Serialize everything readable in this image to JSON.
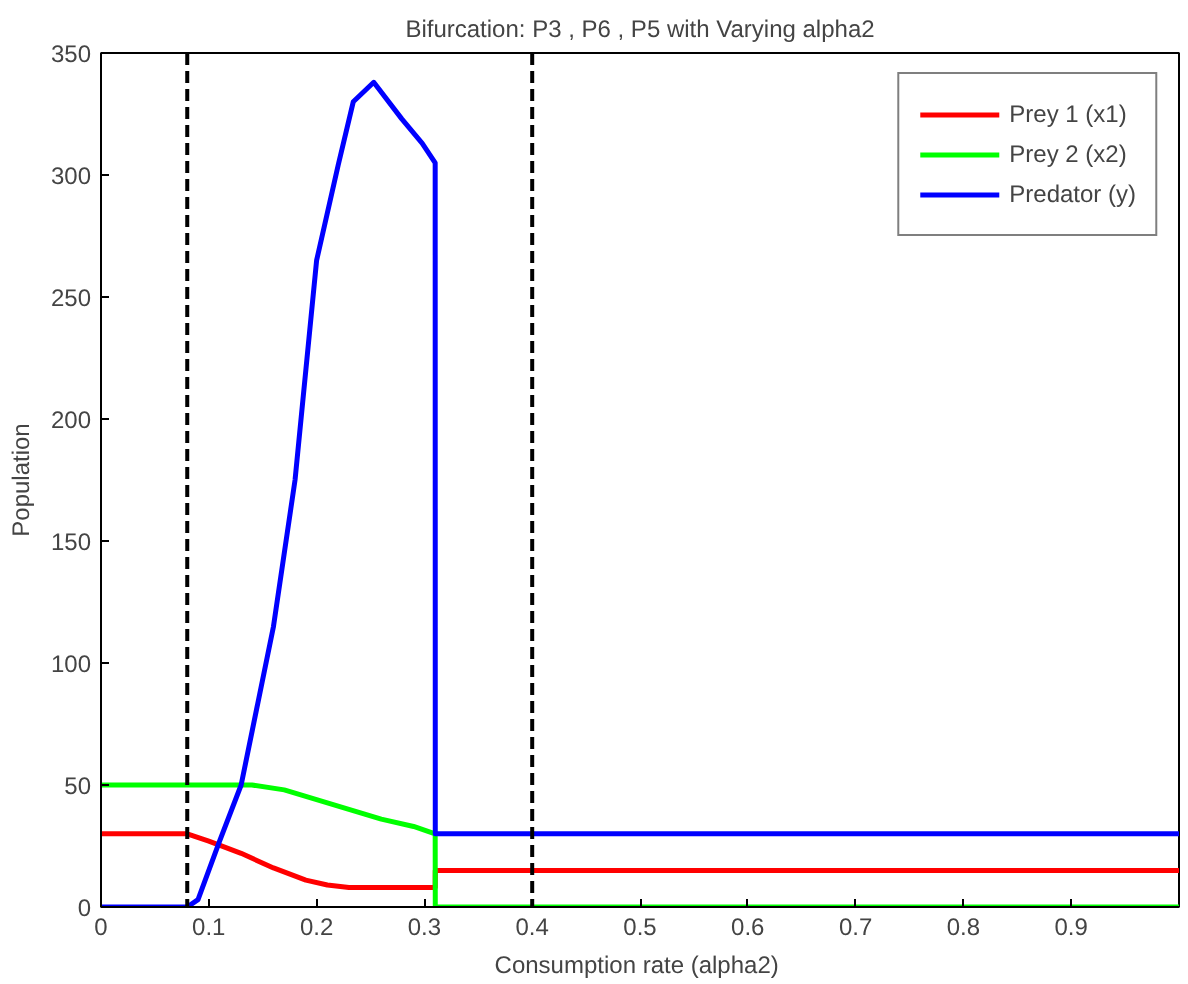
{
  "chart_data": {
    "type": "line",
    "title": "Bifurcation: P3 , P6 , P5 with Varying alpha2",
    "xlabel": "Consumption  rate (alpha2)",
    "ylabel": "Population",
    "xlim": [
      0,
      1
    ],
    "ylim": [
      0,
      350
    ],
    "xticks": [
      0,
      0.1,
      0.2,
      0.3,
      0.4,
      0.5,
      0.6,
      0.7,
      0.8,
      0.9
    ],
    "yticks": [
      0,
      50,
      100,
      150,
      200,
      250,
      300,
      350
    ],
    "grid": false,
    "legend": "top right",
    "series": [
      {
        "name": "Prey 1 (x1)",
        "color": "#ff0000",
        "x": [
          0,
          0.08,
          0.1,
          0.13,
          0.16,
          0.19,
          0.21,
          0.23,
          0.31,
          0.3101,
          1
        ],
        "values": [
          30,
          30,
          27,
          22,
          16,
          11,
          9,
          8,
          8,
          15,
          15
        ]
      },
      {
        "name": "Prey 2 (x2)",
        "color": "#00ff00",
        "x": [
          0,
          0.14,
          0.17,
          0.2,
          0.23,
          0.26,
          0.29,
          0.31,
          0.3101,
          1
        ],
        "values": [
          50,
          50,
          48,
          44,
          40,
          36,
          33,
          30,
          0,
          0
        ]
      },
      {
        "name": "Predator (y)",
        "color": "#0000ff",
        "x": [
          0,
          0.08,
          0.09,
          0.11,
          0.13,
          0.16,
          0.18,
          0.2,
          0.22,
          0.234,
          0.253,
          0.279,
          0.298,
          0.31,
          0.3101,
          1
        ],
        "values": [
          0,
          0,
          3,
          27,
          50,
          115,
          175,
          265,
          304,
          330,
          338,
          323,
          313,
          305,
          30,
          30
        ]
      }
    ],
    "ref_lines": [
      {
        "axis": "x",
        "value": 0.08,
        "color": "#000000",
        "line_style": "dashed"
      },
      {
        "axis": "x",
        "value": 0.4,
        "color": "#000000",
        "line_style": "dashed"
      }
    ]
  }
}
